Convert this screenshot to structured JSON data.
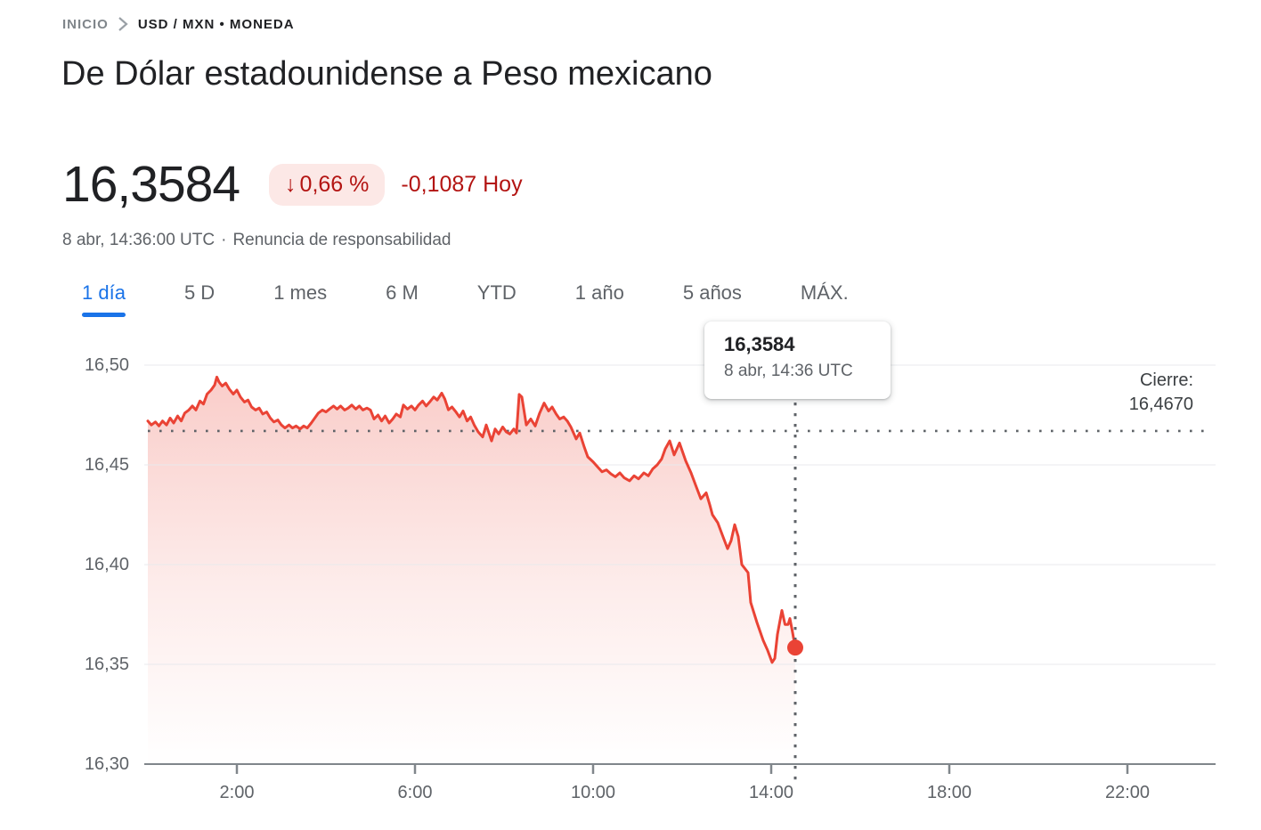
{
  "breadcrumb": {
    "home": "INICIO",
    "current": "USD / MXN • MONEDA"
  },
  "title": "De Dólar estadounidense a Peso mexicano",
  "quote": {
    "price": "16,3584",
    "change_arrow": "↓",
    "change_percent": "0,66 %",
    "change_amount": "-0,1087 Hoy",
    "timestamp_line": "8 abr, 14:36:00 UTC",
    "separator": "·",
    "disclaimer": "Renuncia de responsabilidad"
  },
  "tabs": [
    {
      "id": "1d",
      "label": "1 día",
      "active": true
    },
    {
      "id": "5d",
      "label": "5 D",
      "active": false
    },
    {
      "id": "1m",
      "label": "1 mes",
      "active": false
    },
    {
      "id": "6m",
      "label": "6 M",
      "active": false
    },
    {
      "id": "ytd",
      "label": "YTD",
      "active": false
    },
    {
      "id": "1y",
      "label": "1 año",
      "active": false
    },
    {
      "id": "5y",
      "label": "5 años",
      "active": false
    },
    {
      "id": "max",
      "label": "MÁX.",
      "active": false
    }
  ],
  "tooltip": {
    "price": "16,3584",
    "time": "8 abr, 14:36 UTC"
  },
  "close_label": {
    "prefix": "Cierre:",
    "value": "16,4670"
  },
  "colors": {
    "accent_blue": "#1a73e8",
    "line_red": "#ea4335",
    "badge_bg": "#fce8e6",
    "negative_red": "#b31412",
    "text_primary": "#202124",
    "text_secondary": "#5f6368",
    "gridline": "#e8eaed",
    "axis": "#80868b"
  },
  "chart_data": {
    "type": "area",
    "title": "USD/MXN intradía (1 día)",
    "x_unit": "hora UTC",
    "xlim_hours": [
      0,
      24
    ],
    "ylim": [
      16.3,
      16.505
    ],
    "x_ticks": [
      "2:00",
      "6:00",
      "10:00",
      "14:00",
      "18:00",
      "22:00"
    ],
    "x_tick_hours": [
      2,
      6,
      10,
      14,
      18,
      22
    ],
    "y_tick_labels": [
      "16,50",
      "16,45",
      "16,40",
      "16,35",
      "16,30"
    ],
    "y_tick_values": [
      16.5,
      16.45,
      16.4,
      16.35,
      16.3
    ],
    "previous_close": 16.467,
    "last_point": {
      "hour": 14.54,
      "value": 16.3584
    },
    "grid": true,
    "legend": "none",
    "series": [
      {
        "name": "USD/MXN",
        "points": [
          [
            0.0,
            16.472
          ],
          [
            0.08,
            16.47
          ],
          [
            0.17,
            16.4715
          ],
          [
            0.25,
            16.4695
          ],
          [
            0.33,
            16.472
          ],
          [
            0.42,
            16.47
          ],
          [
            0.5,
            16.4735
          ],
          [
            0.58,
            16.471
          ],
          [
            0.67,
            16.4745
          ],
          [
            0.75,
            16.472
          ],
          [
            0.83,
            16.476
          ],
          [
            0.92,
            16.4775
          ],
          [
            1.0,
            16.4795
          ],
          [
            1.08,
            16.4775
          ],
          [
            1.17,
            16.482
          ],
          [
            1.25,
            16.4805
          ],
          [
            1.33,
            16.4855
          ],
          [
            1.42,
            16.4875
          ],
          [
            1.5,
            16.49
          ],
          [
            1.55,
            16.494
          ],
          [
            1.6,
            16.4915
          ],
          [
            1.67,
            16.4895
          ],
          [
            1.75,
            16.491
          ],
          [
            1.83,
            16.488
          ],
          [
            1.92,
            16.4855
          ],
          [
            2.0,
            16.4875
          ],
          [
            2.08,
            16.484
          ],
          [
            2.17,
            16.4815
          ],
          [
            2.25,
            16.4825
          ],
          [
            2.33,
            16.479
          ],
          [
            2.42,
            16.4775
          ],
          [
            2.5,
            16.4785
          ],
          [
            2.58,
            16.4755
          ],
          [
            2.67,
            16.4765
          ],
          [
            2.75,
            16.4735
          ],
          [
            2.83,
            16.4715
          ],
          [
            2.92,
            16.4725
          ],
          [
            3.0,
            16.47
          ],
          [
            3.08,
            16.4685
          ],
          [
            3.17,
            16.47
          ],
          [
            3.25,
            16.4685
          ],
          [
            3.33,
            16.4695
          ],
          [
            3.42,
            16.468
          ],
          [
            3.5,
            16.4695
          ],
          [
            3.58,
            16.4685
          ],
          [
            3.67,
            16.471
          ],
          [
            3.75,
            16.4735
          ],
          [
            3.83,
            16.476
          ],
          [
            3.92,
            16.4775
          ],
          [
            4.0,
            16.4765
          ],
          [
            4.08,
            16.478
          ],
          [
            4.17,
            16.4795
          ],
          [
            4.25,
            16.478
          ],
          [
            4.33,
            16.4795
          ],
          [
            4.42,
            16.4775
          ],
          [
            4.5,
            16.4785
          ],
          [
            4.58,
            16.48
          ],
          [
            4.67,
            16.478
          ],
          [
            4.75,
            16.4795
          ],
          [
            4.83,
            16.4775
          ],
          [
            4.92,
            16.4785
          ],
          [
            5.0,
            16.4775
          ],
          [
            5.08,
            16.473
          ],
          [
            5.17,
            16.475
          ],
          [
            5.25,
            16.472
          ],
          [
            5.33,
            16.4745
          ],
          [
            5.42,
            16.471
          ],
          [
            5.5,
            16.473
          ],
          [
            5.58,
            16.4755
          ],
          [
            5.67,
            16.474
          ],
          [
            5.74,
            16.48
          ],
          [
            5.83,
            16.478
          ],
          [
            5.92,
            16.4795
          ],
          [
            6.0,
            16.4775
          ],
          [
            6.08,
            16.48
          ],
          [
            6.17,
            16.482
          ],
          [
            6.25,
            16.4795
          ],
          [
            6.33,
            16.4815
          ],
          [
            6.42,
            16.484
          ],
          [
            6.5,
            16.4825
          ],
          [
            6.6,
            16.486
          ],
          [
            6.67,
            16.483
          ],
          [
            6.75,
            16.4776
          ],
          [
            6.83,
            16.479
          ],
          [
            6.92,
            16.4765
          ],
          [
            7.0,
            16.474
          ],
          [
            7.08,
            16.477
          ],
          [
            7.17,
            16.472
          ],
          [
            7.25,
            16.474
          ],
          [
            7.33,
            16.47
          ],
          [
            7.42,
            16.4665
          ],
          [
            7.52,
            16.464
          ],
          [
            7.6,
            16.47
          ],
          [
            7.72,
            16.462
          ],
          [
            7.8,
            16.468
          ],
          [
            7.88,
            16.4655
          ],
          [
            7.97,
            16.469
          ],
          [
            8.05,
            16.4665
          ],
          [
            8.13,
            16.4655
          ],
          [
            8.22,
            16.468
          ],
          [
            8.28,
            16.466
          ],
          [
            8.34,
            16.4853
          ],
          [
            8.4,
            16.484
          ],
          [
            8.5,
            16.47
          ],
          [
            8.6,
            16.473
          ],
          [
            8.7,
            16.4695
          ],
          [
            8.8,
            16.476
          ],
          [
            8.9,
            16.481
          ],
          [
            9.0,
            16.477
          ],
          [
            9.08,
            16.479
          ],
          [
            9.17,
            16.4755
          ],
          [
            9.25,
            16.473
          ],
          [
            9.34,
            16.474
          ],
          [
            9.42,
            16.472
          ],
          [
            9.5,
            16.469
          ],
          [
            9.62,
            16.463
          ],
          [
            9.7,
            16.466
          ],
          [
            9.8,
            16.459
          ],
          [
            9.88,
            16.454
          ],
          [
            10.0,
            16.4515
          ],
          [
            10.08,
            16.4495
          ],
          [
            10.2,
            16.4465
          ],
          [
            10.3,
            16.4475
          ],
          [
            10.4,
            16.4455
          ],
          [
            10.5,
            16.444
          ],
          [
            10.6,
            16.446
          ],
          [
            10.7,
            16.4435
          ],
          [
            10.82,
            16.442
          ],
          [
            10.92,
            16.4445
          ],
          [
            11.02,
            16.443
          ],
          [
            11.14,
            16.446
          ],
          [
            11.24,
            16.4445
          ],
          [
            11.34,
            16.448
          ],
          [
            11.44,
            16.45
          ],
          [
            11.54,
            16.453
          ],
          [
            11.62,
            16.458
          ],
          [
            11.72,
            16.462
          ],
          [
            11.82,
            16.455
          ],
          [
            11.94,
            16.461
          ],
          [
            12.08,
            16.452
          ],
          [
            12.2,
            16.446
          ],
          [
            12.3,
            16.44
          ],
          [
            12.42,
            16.433
          ],
          [
            12.54,
            16.436
          ],
          [
            12.62,
            16.43
          ],
          [
            12.68,
            16.425
          ],
          [
            12.8,
            16.421
          ],
          [
            12.9,
            16.415
          ],
          [
            13.02,
            16.408
          ],
          [
            13.1,
            16.412
          ],
          [
            13.18,
            16.42
          ],
          [
            13.26,
            16.414
          ],
          [
            13.34,
            16.4
          ],
          [
            13.48,
            16.396
          ],
          [
            13.54,
            16.381
          ],
          [
            13.68,
            16.371
          ],
          [
            13.82,
            16.362
          ],
          [
            13.92,
            16.357
          ],
          [
            14.02,
            16.351
          ],
          [
            14.08,
            16.353
          ],
          [
            14.14,
            16.365
          ],
          [
            14.24,
            16.377
          ],
          [
            14.31,
            16.37
          ],
          [
            14.38,
            16.37
          ],
          [
            14.42,
            16.373
          ],
          [
            14.48,
            16.366
          ],
          [
            14.54,
            16.3584
          ]
        ]
      }
    ]
  }
}
